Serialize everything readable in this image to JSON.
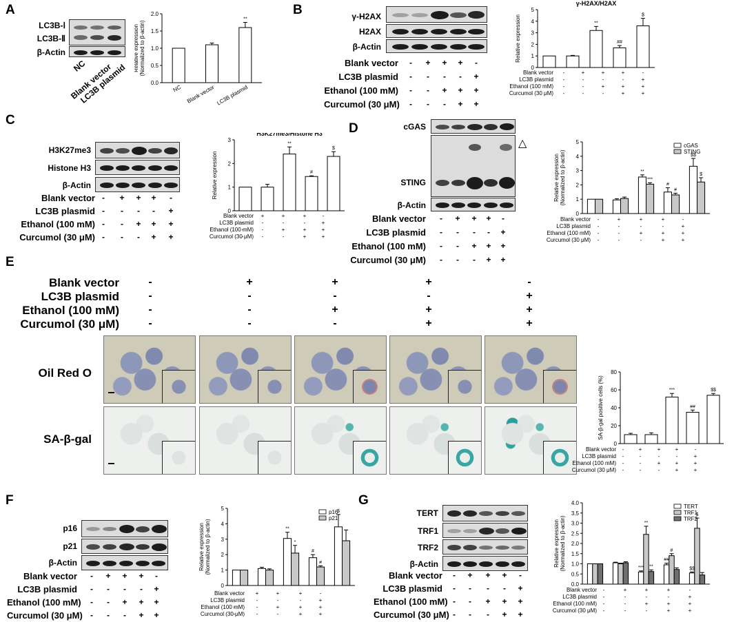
{
  "panels": {
    "A": {
      "letter": "A",
      "blot_labels": [
        "LC3B-Ⅰ",
        "LC3B-Ⅱ",
        "β-Actin"
      ],
      "lane_labels": [
        "NC",
        "Blank vector",
        "LC3B plasmid"
      ]
    },
    "B": {
      "letter": "B",
      "blot_labels": [
        "γ-H2AX",
        "H2AX",
        "β-Actin"
      ],
      "conditions": [
        "Blank vector",
        "LC3B plasmid",
        "Ethanol (100 mM)",
        "Curcumol (30 μM)"
      ],
      "signs": [
        [
          "-",
          "+",
          "+",
          "+",
          "-"
        ],
        [
          "-",
          "-",
          "-",
          "-",
          "+"
        ],
        [
          "-",
          "-",
          "+",
          "+",
          "+"
        ],
        [
          "-",
          "-",
          "-",
          "+",
          "+"
        ]
      ]
    },
    "C": {
      "letter": "C",
      "blot_labels": [
        "H3K27me3",
        "Histone H3",
        "β-Actin"
      ],
      "conditions": [
        "Blank vector",
        "LC3B plasmid",
        "Ethanol (100 mM)",
        "Curcumol (30 μM)"
      ],
      "signs": [
        [
          "-",
          "+",
          "+",
          "+",
          "-"
        ],
        [
          "-",
          "-",
          "-",
          "-",
          "+"
        ],
        [
          "-",
          "-",
          "+",
          "+",
          "+"
        ],
        [
          "-",
          "-",
          "-",
          "+",
          "+"
        ]
      ]
    },
    "D": {
      "letter": "D",
      "blot_labels": [
        "cGAS",
        "STING",
        "β-Actin"
      ],
      "triangle": "△",
      "conditions": [
        "Blank vector",
        "LC3B plasmid",
        "Ethanol (100 mM)",
        "Curcumol (30 μM)"
      ],
      "signs": [
        [
          "-",
          "+",
          "+",
          "+",
          "-"
        ],
        [
          "-",
          "-",
          "-",
          "-",
          "+"
        ],
        [
          "-",
          "-",
          "+",
          "+",
          "+"
        ],
        [
          "-",
          "-",
          "-",
          "+",
          "+"
        ]
      ]
    },
    "E": {
      "letter": "E",
      "conditions": [
        "Blank vector",
        "LC3B plasmid",
        "Ethanol (100 mM)",
        "Curcumol (30 μM)"
      ],
      "signs": [
        [
          "-",
          "+",
          "+",
          "+",
          "-"
        ],
        [
          "-",
          "-",
          "-",
          "-",
          "+"
        ],
        [
          "-",
          "-",
          "+",
          "+",
          "+"
        ],
        [
          "-",
          "-",
          "-",
          "+",
          "+"
        ]
      ],
      "row_labels": [
        "Oil Red O",
        "SA-β-gal"
      ]
    },
    "F": {
      "letter": "F",
      "blot_labels": [
        "p16",
        "p21",
        "β-Actin"
      ],
      "conditions": [
        "Blank vector",
        "LC3B plasmid",
        "Ethanol (100 mM)",
        "Curcumol (30 μM)"
      ],
      "signs": [
        [
          "-",
          "+",
          "+",
          "+",
          "-"
        ],
        [
          "-",
          "-",
          "-",
          "-",
          "+"
        ],
        [
          "-",
          "-",
          "+",
          "+",
          "+"
        ],
        [
          "-",
          "-",
          "-",
          "+",
          "+"
        ]
      ]
    },
    "G": {
      "letter": "G",
      "blot_labels": [
        "TERT",
        "TRF1",
        "TRF2",
        "β-Actin"
      ],
      "conditions": [
        "Blank vector",
        "LC3B plasmid",
        "Ethanol (100 mM)",
        "Curcumol (30 μM)"
      ],
      "signs": [
        [
          "-",
          "+",
          "+",
          "+",
          "-"
        ],
        [
          "-",
          "-",
          "-",
          "-",
          "+"
        ],
        [
          "-",
          "-",
          "+",
          "+",
          "+"
        ],
        [
          "-",
          "-",
          "-",
          "+",
          "+"
        ]
      ]
    }
  },
  "chart_conditions": [
    "Blank vector",
    "LC3B plasmid",
    "Ethanol (100 mM)",
    "Curcumol (30 μM)"
  ],
  "chart_data": [
    {
      "id": "A",
      "type": "bar",
      "title": "",
      "ylabel": "Relative expression\n(Normalized to β-actin)",
      "categories": [
        "NC",
        "Blank vector",
        "LC3B plasmid"
      ],
      "ylim": [
        0,
        2
      ],
      "yticks": [
        0,
        0.5,
        1.0,
        1.5,
        2.0
      ],
      "series": [
        {
          "values": [
            1.0,
            1.1,
            1.6
          ],
          "errors": [
            0,
            0.05,
            0.15
          ],
          "color": "#ffffff"
        }
      ],
      "annotations": [
        [
          "",
          "",
          "**"
        ]
      ]
    },
    {
      "id": "B",
      "type": "bar",
      "title": "γ-H2AX/H2AX",
      "ylabel": "Relative expression",
      "ylim": [
        0,
        5
      ],
      "yticks": [
        0,
        1,
        2,
        3,
        4,
        5
      ],
      "series": [
        {
          "values": [
            1.0,
            1.0,
            3.2,
            1.7,
            3.6
          ],
          "errors": [
            0,
            0.05,
            0.35,
            0.2,
            0.65
          ],
          "color": "#ffffff"
        }
      ],
      "annotations": [
        [
          "",
          "",
          "**",
          "##",
          "$"
        ]
      ]
    },
    {
      "id": "C",
      "type": "bar",
      "title": "H3K27me3/Histone H3",
      "ylabel": "Relative expression",
      "ylim": [
        0,
        3
      ],
      "yticks": [
        0,
        1,
        2,
        3
      ],
      "series": [
        {
          "values": [
            1.0,
            1.0,
            2.4,
            1.45,
            2.3
          ],
          "errors": [
            0,
            0.12,
            0.3,
            0.03,
            0.2
          ],
          "color": "#ffffff"
        }
      ],
      "annotations": [
        [
          "",
          "",
          "**",
          "#",
          "$"
        ]
      ]
    },
    {
      "id": "D",
      "type": "bar",
      "title": "",
      "ylabel": "Relative expression\n(Normalized to β-actin)",
      "ylim": [
        0,
        5
      ],
      "yticks": [
        0,
        1,
        2,
        3,
        4,
        5
      ],
      "legend": "top-right",
      "series": [
        {
          "name": "cGAS",
          "values": [
            1.0,
            0.95,
            2.55,
            1.5,
            3.3
          ],
          "errors": [
            0,
            0.08,
            0.15,
            0.3,
            0.55
          ],
          "color": "#ffffff"
        },
        {
          "name": "STING",
          "values": [
            1.0,
            1.05,
            2.05,
            1.3,
            2.2
          ],
          "errors": [
            0,
            0.1,
            0.1,
            0.12,
            0.3
          ],
          "color": "#c8c8c8"
        }
      ],
      "annotations": [
        [
          "",
          "",
          "**",
          "#",
          "$$"
        ],
        [
          "",
          "",
          "***",
          "#",
          "$"
        ]
      ]
    },
    {
      "id": "E",
      "type": "bar",
      "title": "",
      "ylabel": "SA-β-gal positive cells (%)",
      "ylim": [
        0,
        80
      ],
      "yticks": [
        0,
        20,
        40,
        60,
        80
      ],
      "series": [
        {
          "values": [
            10,
            10,
            52,
            35,
            54
          ],
          "errors": [
            1.5,
            2.0,
            4.0,
            2.5,
            2.0
          ],
          "color": "#ffffff"
        }
      ],
      "annotations": [
        [
          "",
          "",
          "***",
          "##",
          "$$"
        ]
      ]
    },
    {
      "id": "F",
      "type": "bar",
      "title": "",
      "ylabel": "Relative expression\n(Normalized to β-actin)",
      "ylim": [
        0,
        5
      ],
      "yticks": [
        0,
        1,
        2,
        3,
        4,
        5
      ],
      "legend": "top-right",
      "series": [
        {
          "name": "p16",
          "values": [
            1.0,
            1.1,
            3.05,
            1.8,
            3.8
          ],
          "errors": [
            0,
            0.08,
            0.4,
            0.2,
            0.8
          ],
          "color": "#ffffff"
        },
        {
          "name": "p21",
          "values": [
            1.0,
            1.0,
            2.1,
            1.2,
            2.9
          ],
          "errors": [
            0,
            0.08,
            0.5,
            0.08,
            0.7
          ],
          "color": "#c8c8c8"
        }
      ],
      "annotations": [
        [
          "",
          "",
          "**",
          "#",
          "$"
        ],
        [
          "",
          "",
          "*",
          "#",
          ""
        ]
      ]
    },
    {
      "id": "G",
      "type": "bar",
      "title": "",
      "ylabel": "Relative expression\n(Normalized to β-actin)",
      "ylim": [
        0,
        4
      ],
      "yticks": [
        0,
        0.5,
        1.0,
        1.5,
        2.0,
        2.5,
        3.0,
        3.5,
        4.0
      ],
      "legend": "top-right",
      "series": [
        {
          "name": "TERT",
          "values": [
            1.0,
            1.05,
            0.6,
            0.95,
            0.55
          ],
          "errors": [
            0,
            0.03,
            0.05,
            0.08,
            0.05
          ],
          "color": "#ffffff"
        },
        {
          "name": "TRF1",
          "values": [
            1.0,
            1.0,
            2.45,
            1.4,
            2.75
          ],
          "errors": [
            0,
            0.03,
            0.4,
            0.1,
            0.5
          ],
          "color": "#c8c8c8"
        },
        {
          "name": "TRF2",
          "values": [
            1.0,
            1.05,
            0.62,
            0.72,
            0.45
          ],
          "errors": [
            0,
            0.05,
            0.08,
            0.08,
            0.12
          ],
          "color": "#707070"
        }
      ],
      "annotations": [
        [
          "",
          "",
          "***",
          "##",
          "$$"
        ],
        [
          "",
          "",
          "**",
          "#",
          "$"
        ],
        [
          "",
          "",
          "**",
          "",
          ""
        ]
      ]
    }
  ]
}
